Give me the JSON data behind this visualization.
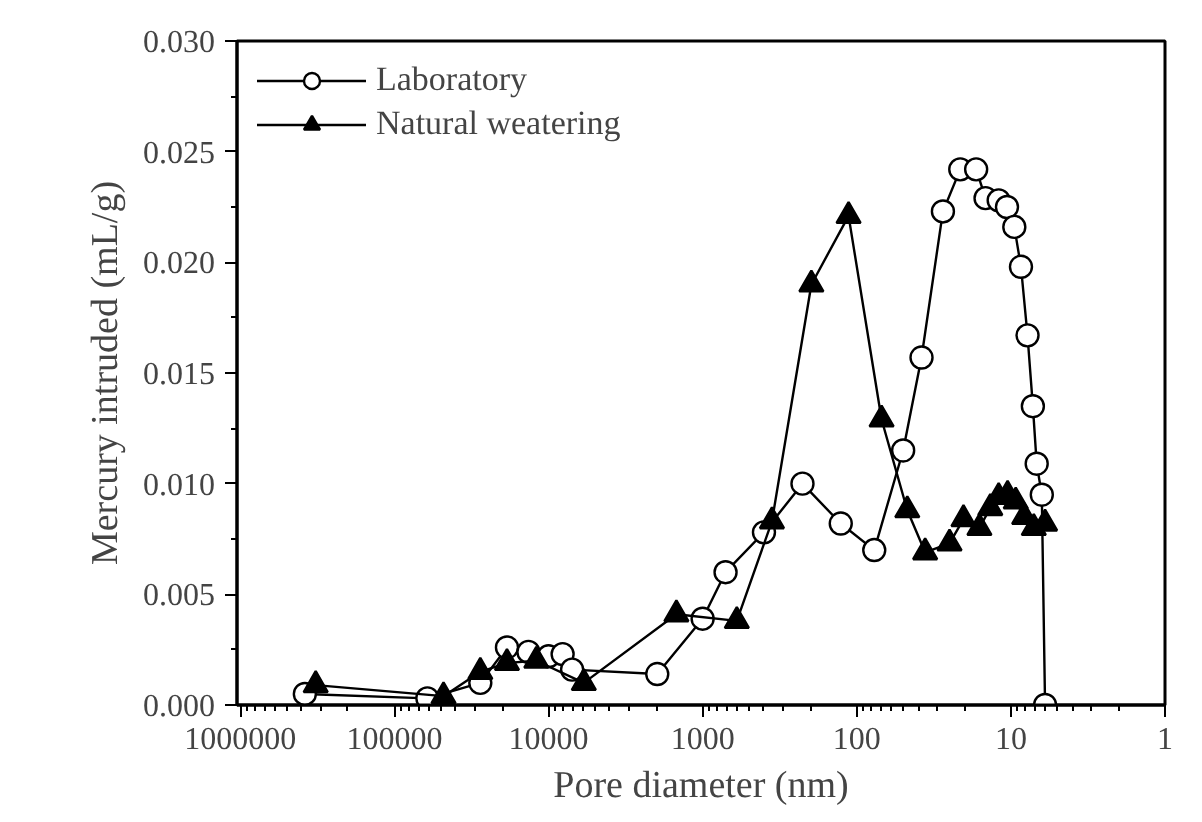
{
  "chart_data": {
    "type": "line",
    "xlabel": "Pore diameter (nm)",
    "ylabel": "Mercury intruded (mL/g)",
    "log": "x",
    "xlim": [
      1050000,
      1
    ],
    "xticks": [
      1000000,
      100000,
      10000,
      1000,
      100,
      10,
      1
    ],
    "ylim": [
      0,
      0.03
    ],
    "yticks": [
      {
        "value": 0,
        "label": "0.000"
      },
      {
        "value": 0.005,
        "label": "0.005"
      },
      {
        "value": 0.01,
        "label": "0.010"
      },
      {
        "value": 0.015,
        "label": "0.015"
      },
      {
        "value": 0.02,
        "label": "0.020"
      },
      {
        "value": 0.025,
        "label": "0.025"
      },
      {
        "value": 0.03,
        "label": "0.030"
      }
    ],
    "grid": false,
    "legend": "top left",
    "series": [
      {
        "name": "Laboratory",
        "color": "#000000",
        "marker": "circle",
        "x": [
          381000,
          61100,
          27700,
          18600,
          13500,
          10000,
          8100,
          7030,
          1970,
          1000,
          710,
          400,
          225,
          127,
          77,
          50,
          38,
          27.6,
          21.3,
          16.8,
          14.6,
          12.0,
          10.6,
          9.5,
          8.6,
          7.8,
          7.2,
          6.8,
          6.3,
          6.0
        ],
        "values": [
          0.0005,
          0.0003,
          0.001,
          0.0026,
          0.0024,
          0.0022,
          0.0023,
          0.0016,
          0.0014,
          0.0039,
          0.006,
          0.0078,
          0.01,
          0.0082,
          0.007,
          0.0115,
          0.0157,
          0.0223,
          0.0242,
          0.0242,
          0.0229,
          0.0228,
          0.0225,
          0.0216,
          0.0198,
          0.0167,
          0.0135,
          0.0109,
          0.0095,
          0.0
        ]
      },
      {
        "name": "Natural weatering",
        "color": "#000000",
        "marker": "triangle",
        "x": [
          324000,
          48000,
          27700,
          18600,
          12000,
          5900,
          1480,
          600,
          355,
          197,
          113,
          69,
          47,
          36,
          25,
          20.3,
          16,
          13.6,
          12.0,
          10.5,
          9.3,
          8.2,
          7.1,
          6.0
        ],
        "values": [
          0.0009,
          0.0004,
          0.0015,
          0.0019,
          0.002,
          0.001,
          0.0041,
          0.0038,
          0.0083,
          0.019,
          0.0221,
          0.0129,
          0.0088,
          0.0069,
          0.0073,
          0.0084,
          0.008,
          0.0089,
          0.0094,
          0.0095,
          0.0092,
          0.0085,
          0.008,
          0.0082
        ]
      }
    ]
  }
}
